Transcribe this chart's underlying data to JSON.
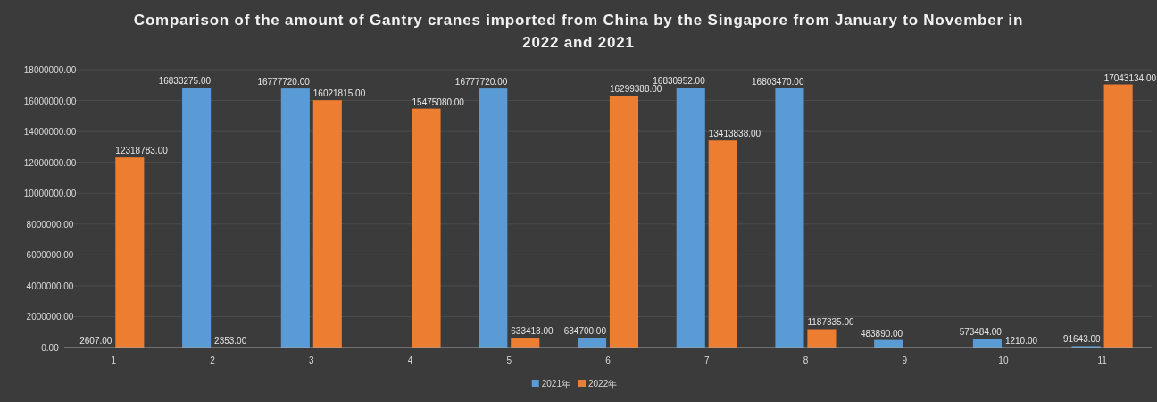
{
  "chart_data": {
    "type": "bar",
    "title": "Comparison of the amount of Gantry cranes imported from China by the Singapore from January to November in 2022 and 2021",
    "categories": [
      "1",
      "2",
      "3",
      "4",
      "5",
      "6",
      "7",
      "8",
      "9",
      "10",
      "11"
    ],
    "series": [
      {
        "name": "2021年",
        "color": "#5b9bd5",
        "values": [
          2607,
          16833275,
          16777720,
          null,
          16777720,
          634700,
          16830952,
          16803470,
          483890,
          573484,
          91643
        ],
        "value_labels": [
          "2607.00",
          "16833275.00",
          "16777720.00",
          null,
          "16777720.00",
          "634700.00",
          "16830952.00",
          "16803470.00",
          "483890.00",
          "573484.00",
          "91643.00"
        ]
      },
      {
        "name": "2022年",
        "color": "#ed7d31",
        "values": [
          12318783,
          2353,
          16021815,
          15475080,
          633413,
          16299388,
          13413838,
          1187335,
          null,
          1210,
          17043134
        ],
        "value_labels": [
          "12318783.00",
          "2353.00",
          "16021815.00",
          "15475080.00",
          "633413.00",
          "16299388.00",
          "13413838.00",
          "1187335.00",
          null,
          "1210.00",
          "17043134.00"
        ]
      }
    ],
    "ylim": [
      0,
      18000000
    ],
    "yticks": [
      {
        "value": 0,
        "label": "0.00"
      },
      {
        "value": 2000000,
        "label": "2000000.00"
      },
      {
        "value": 4000000,
        "label": "4000000.00"
      },
      {
        "value": 6000000,
        "label": "6000000.00"
      },
      {
        "value": 8000000,
        "label": "8000000.00"
      },
      {
        "value": 10000000,
        "label": "10000000.00"
      },
      {
        "value": 12000000,
        "label": "12000000.00"
      },
      {
        "value": 14000000,
        "label": "14000000.00"
      },
      {
        "value": 16000000,
        "label": "16000000.00"
      },
      {
        "value": 18000000,
        "label": "18000000.00"
      }
    ],
    "grid": "y",
    "legend": "bottom"
  }
}
